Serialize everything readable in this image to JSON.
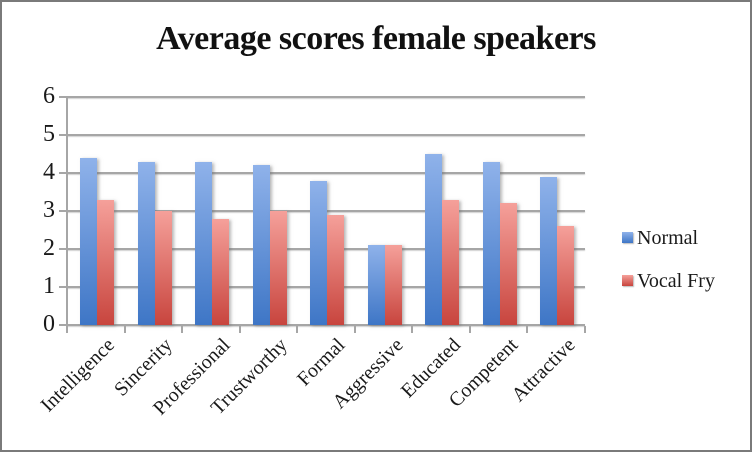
{
  "chart_data": {
    "type": "bar",
    "title": "Average scores female speakers",
    "categories": [
      "Intelligence",
      "Sincerity",
      "Professional",
      "Trustworthy",
      "Formal",
      "Aggressive",
      "Educated",
      "Competent",
      "Attractive"
    ],
    "series": [
      {
        "name": "Normal",
        "values": [
          4.4,
          4.3,
          4.3,
          4.2,
          3.8,
          2.1,
          4.5,
          4.3,
          3.9
        ],
        "color": {
          "top": "#8FB2EA",
          "bottom": "#3E76C6"
        }
      },
      {
        "name": "Vocal Fry",
        "values": [
          3.3,
          3.0,
          2.8,
          3.0,
          2.9,
          2.1,
          3.3,
          3.2,
          2.6
        ],
        "color": {
          "top": "#F5A09A",
          "bottom": "#C8453E"
        }
      }
    ],
    "xlabel": "",
    "ylabel": "",
    "ylim": [
      0,
      6
    ],
    "yticks": [
      0,
      1,
      2,
      3,
      4,
      5,
      6
    ],
    "grid": true,
    "legend_position": "right",
    "x_label_rotation_deg": 45
  },
  "colors": {
    "gridline": "#A6A6A6",
    "axis": "#A6A6A6",
    "text": "#1A1A1A",
    "border": "#7A7A7A",
    "background": "#FFFFFF"
  }
}
